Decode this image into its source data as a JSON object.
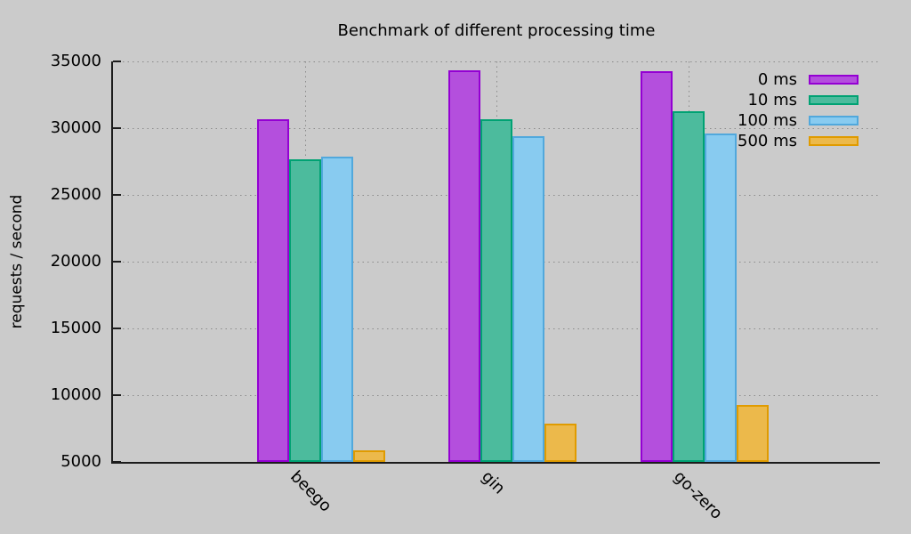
{
  "window": {
    "background_color": "#cbcbcb"
  },
  "chart_data": {
    "type": "bar",
    "title": "Benchmark of different processing time",
    "xlabel": "",
    "ylabel": "requests / second",
    "categories": [
      "beego",
      "gin",
      "go-zero"
    ],
    "series": [
      {
        "name": "0 ms",
        "fill": "#b44fdd",
        "border": "#9400d3",
        "values": [
          30700,
          34350,
          34250
        ]
      },
      {
        "name": "10 ms",
        "fill": "#4cbb9d",
        "border": "#00a273",
        "values": [
          27700,
          30650,
          31250
        ]
      },
      {
        "name": "100 ms",
        "fill": "#88cbf0",
        "border": "#51a8dc",
        "values": [
          27850,
          29400,
          29600
        ]
      },
      {
        "name": "500 ms",
        "fill": "#ecb94b",
        "border": "#e09b00",
        "values": [
          5850,
          7900,
          9250
        ]
      }
    ],
    "ylim": [
      5000,
      35000
    ],
    "yticks": [
      5000,
      10000,
      15000,
      20000,
      25000,
      30000,
      35000
    ],
    "grid": true,
    "legend_position": "top-right",
    "axis_color": "#1c1c1c",
    "grid_color": "#8a8a8a"
  }
}
